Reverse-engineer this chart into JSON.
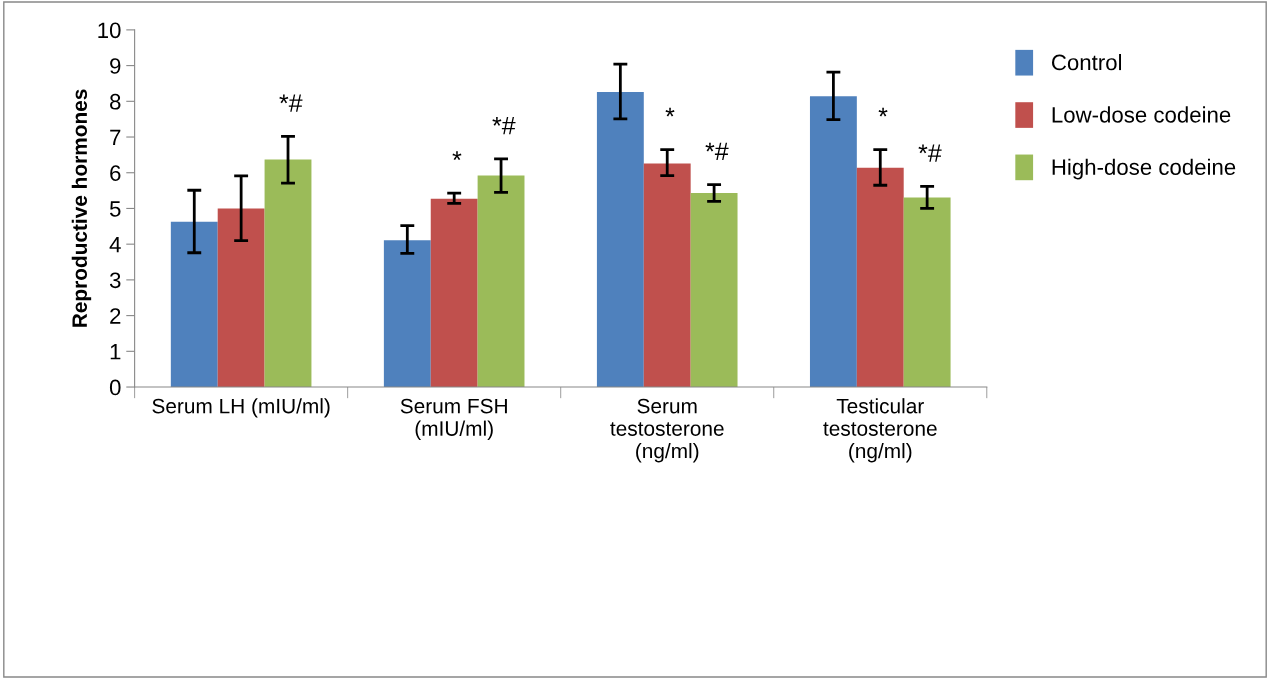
{
  "chart_data": {
    "type": "bar",
    "ylabel": "Reproductive hormones",
    "categories": [
      "Serum LH (mIU/ml)",
      "Serum FSH\n(mIU/ml)",
      "Serum\ntestosterone\n(ng/ml)",
      "Testicular\ntestosterone\n(ng/ml)"
    ],
    "series": [
      {
        "name": "Control",
        "color": "#4f81bd",
        "values": [
          4.63,
          4.11,
          8.26,
          8.14
        ],
        "errors": [
          [
            3.76,
            5.51
          ],
          [
            3.74,
            4.52
          ],
          [
            7.51,
            9.04
          ],
          [
            7.49,
            8.82
          ]
        ]
      },
      {
        "name": "Low-dose codeine",
        "color": "#c0504d",
        "values": [
          5.0,
          5.27,
          6.26,
          6.14
        ],
        "errors": [
          [
            4.1,
            5.91
          ],
          [
            5.14,
            5.43
          ],
          [
            5.92,
            6.65
          ],
          [
            5.65,
            6.65
          ]
        ]
      },
      {
        "name": "High-dose codeine",
        "color": "#9bbb59",
        "values": [
          6.37,
          5.92,
          5.43,
          5.31
        ],
        "errors": [
          [
            5.71,
            7.02
          ],
          [
            5.45,
            6.39
          ],
          [
            5.2,
            5.67
          ],
          [
            5.0,
            5.62
          ]
        ]
      }
    ],
    "ylim": [
      0,
      10
    ],
    "yticks": [
      0,
      1,
      2,
      3,
      4,
      5,
      6,
      7,
      8,
      9,
      10
    ],
    "grid": false,
    "legend": "top right",
    "annotations": [
      "*#",
      {
        "text": "*",
        "x": "Serum FSH\n(mIU/ml)",
        "y": 5.27
      },
      "*#",
      {
        "text": "*",
        "x": "Serum\ntestosterone\n(ng/ml)",
        "y": 6.26
      },
      "*#",
      {
        "text": "*",
        "x": "Testicular\ntestosterone\n(ng/ml)",
        "y": 6.14
      },
      "*#"
    ]
  }
}
